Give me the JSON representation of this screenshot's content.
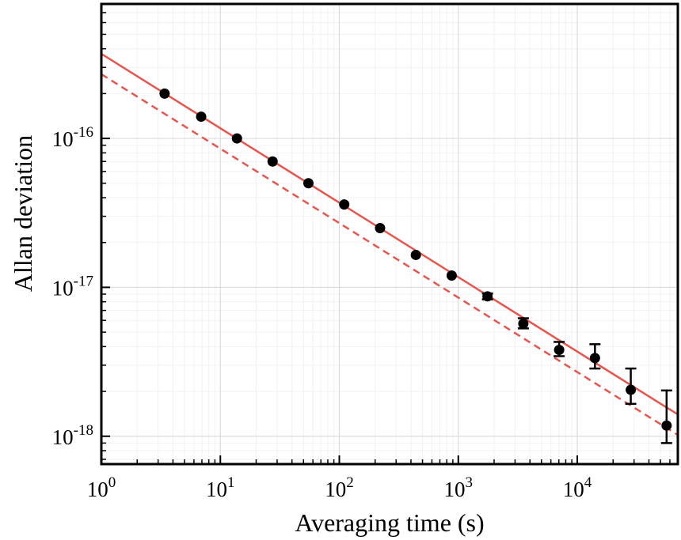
{
  "chart_data": {
    "type": "scatter",
    "title": "",
    "xlabel": "Averaging time (s)",
    "ylabel": "Allan deviation",
    "xscale": "log",
    "yscale": "log",
    "xlim": [
      1,
      70000
    ],
    "ylim": [
      6.5e-19,
      8e-16
    ],
    "grid": true,
    "x_ticks": [
      {
        "value": 1,
        "base": "10",
        "exp": "0"
      },
      {
        "value": 10,
        "base": "10",
        "exp": "1"
      },
      {
        "value": 100,
        "base": "10",
        "exp": "2"
      },
      {
        "value": 1000,
        "base": "10",
        "exp": "3"
      },
      {
        "value": 10000,
        "base": "10",
        "exp": "4"
      }
    ],
    "y_ticks": [
      {
        "value": 1e-16,
        "base": "10",
        "exp": "-16"
      },
      {
        "value": 1e-17,
        "base": "10",
        "exp": "-17"
      },
      {
        "value": 1e-18,
        "base": "10",
        "exp": "-18"
      }
    ],
    "series": [
      {
        "kind": "points",
        "color": "#000000",
        "points": [
          {
            "x": 3.4,
            "y": 2e-16,
            "err_low": 5e-18,
            "err_high": 5e-18
          },
          {
            "x": 6.9,
            "y": 1.4e-16,
            "err_low": 3e-18,
            "err_high": 3e-18
          },
          {
            "x": 13.8,
            "y": 1e-16,
            "err_low": 2e-18,
            "err_high": 2e-18
          },
          {
            "x": 27.5,
            "y": 7e-17,
            "err_low": 1.5e-18,
            "err_high": 1.5e-18
          },
          {
            "x": 55,
            "y": 5e-17,
            "err_low": 1e-18,
            "err_high": 1e-18
          },
          {
            "x": 110,
            "y": 3.6e-17,
            "err_low": 8e-19,
            "err_high": 8e-19
          },
          {
            "x": 220,
            "y": 2.5e-17,
            "err_low": 6e-19,
            "err_high": 6e-19
          },
          {
            "x": 440,
            "y": 1.65e-17,
            "err_low": 5e-19,
            "err_high": 5e-19
          },
          {
            "x": 880,
            "y": 1.2e-17,
            "err_low": 4e-19,
            "err_high": 4e-19
          },
          {
            "x": 1760,
            "y": 8.7e-18,
            "err_low": 4e-19,
            "err_high": 4e-19
          },
          {
            "x": 3520,
            "y": 5.7e-18,
            "err_low": 4e-19,
            "err_high": 5e-19
          },
          {
            "x": 7040,
            "y": 3.8e-18,
            "err_low": 3.5e-19,
            "err_high": 5e-19
          },
          {
            "x": 14080,
            "y": 3.35e-18,
            "err_low": 5e-19,
            "err_high": 8e-19
          },
          {
            "x": 28160,
            "y": 2.05e-18,
            "err_low": 4e-19,
            "err_high": 8e-19
          },
          {
            "x": 56320,
            "y": 1.18e-18,
            "err_low": 2.8e-19,
            "err_high": 8.5e-19
          }
        ]
      },
      {
        "kind": "line",
        "style": "solid",
        "color": "#e8554e",
        "x": [
          1,
          70000
        ],
        "y": [
          3.7e-16,
          1.4e-18
        ]
      },
      {
        "kind": "line",
        "style": "dashed",
        "color": "#e8554e",
        "x": [
          1,
          70000
        ],
        "y": [
          2.7e-16,
          1.02e-18
        ]
      }
    ]
  }
}
